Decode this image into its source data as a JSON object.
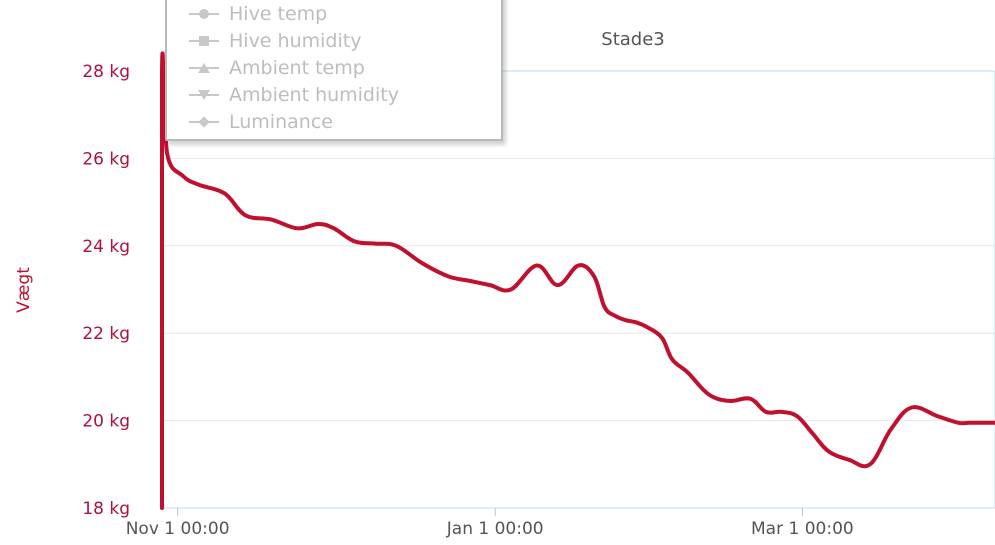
{
  "chart_data": {
    "type": "line",
    "title": "Stade3",
    "ylabel": "Vægt",
    "xlabel": "",
    "ylim": [
      18,
      28
    ],
    "yticks": [
      "18 kg",
      "20 kg",
      "22 kg",
      "24 kg",
      "26 kg",
      "28 kg"
    ],
    "ytick_values": [
      18,
      20,
      22,
      24,
      26,
      28
    ],
    "xticks": [
      "Nov 1 00:00",
      "Jan 1 00:00",
      "Mar 1 00:00"
    ],
    "xtick_values": [
      "2020-11-01",
      "2021-01-01",
      "2021-03-01"
    ],
    "xlim": [
      "2020-10-29",
      "2021-04-07"
    ],
    "grid": true,
    "legend_position": "top-left",
    "series": [
      {
        "name": "Vægt",
        "color": "#c0102e",
        "x": [
          "2020-10-29",
          "2020-10-29",
          "2020-10-30",
          "2020-11-02",
          "2020-11-05",
          "2020-11-10",
          "2020-11-14",
          "2020-11-19",
          "2020-11-24",
          "2020-11-28",
          "2020-12-01",
          "2020-12-05",
          "2020-12-09",
          "2020-12-13",
          "2020-12-18",
          "2020-12-23",
          "2020-12-27",
          "2020-12-31",
          "2021-01-04",
          "2021-01-09",
          "2021-01-13",
          "2021-01-17",
          "2021-01-20",
          "2021-01-22",
          "2021-01-24",
          "2021-01-26",
          "2021-01-28",
          "2021-01-30",
          "2021-02-02",
          "2021-02-04",
          "2021-02-07",
          "2021-02-11",
          "2021-02-15",
          "2021-02-19",
          "2021-02-22",
          "2021-02-25",
          "2021-02-28",
          "2021-03-03",
          "2021-03-06",
          "2021-03-10",
          "2021-03-14",
          "2021-03-18",
          "2021-03-22",
          "2021-03-27",
          "2021-03-31",
          "2021-04-02",
          "2021-04-04",
          "2021-04-07"
        ],
        "y": [
          18,
          28,
          26.1,
          25.6,
          25.4,
          25.2,
          24.7,
          24.6,
          24.4,
          24.5,
          24.4,
          24.1,
          24.05,
          24.0,
          23.6,
          23.3,
          23.2,
          23.1,
          23.0,
          23.55,
          23.1,
          23.55,
          23.3,
          22.6,
          22.4,
          22.3,
          22.25,
          22.15,
          21.9,
          21.4,
          21.1,
          20.6,
          20.45,
          20.5,
          20.2,
          20.2,
          20.1,
          19.7,
          19.3,
          19.1,
          19.0,
          19.8,
          20.3,
          20.1,
          19.95,
          19.95,
          19.95,
          19.95
        ]
      }
    ],
    "legend": [
      "Hive temp",
      "Hive humidity",
      "Ambient temp",
      "Ambient humidity",
      "Luminance"
    ],
    "legend_symbols": [
      "circle",
      "square",
      "triangle",
      "triangle-down",
      "diamond"
    ]
  },
  "colors": {
    "weight_series": "#c0102e",
    "axis_labels": "#b0103a",
    "grid": "#e6e6e6",
    "legend_text": "#bdbdbd",
    "plot_border": "#b9ddf0"
  }
}
